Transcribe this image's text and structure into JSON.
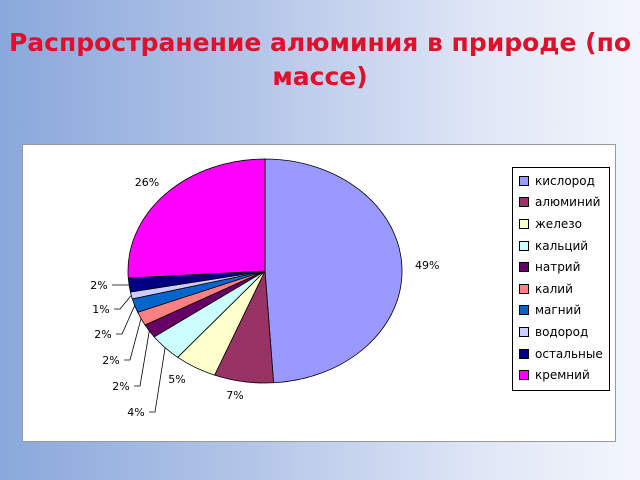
{
  "slide": {
    "title": "Распространение алюминия в природе (по массе)"
  },
  "chart_data": {
    "type": "pie",
    "title": "",
    "categories": [
      "кислород",
      "алюминий",
      "железо",
      "кальций",
      "натрий",
      "калий",
      "магний",
      "водород",
      "остальные",
      "кремний"
    ],
    "values": [
      49,
      7,
      5,
      4,
      2,
      2,
      2,
      1,
      2,
      26
    ],
    "labels": [
      "49%",
      "7%",
      "5%",
      "4%",
      "2%",
      "2%",
      "2%",
      "1%",
      "2%",
      "26%"
    ],
    "colors": [
      "#9999ff",
      "#993366",
      "#ffffcc",
      "#ccffff",
      "#660066",
      "#ff8080",
      "#0066cc",
      "#ccccff",
      "#000080",
      "#ff00ff"
    ],
    "legend_position": "right"
  }
}
